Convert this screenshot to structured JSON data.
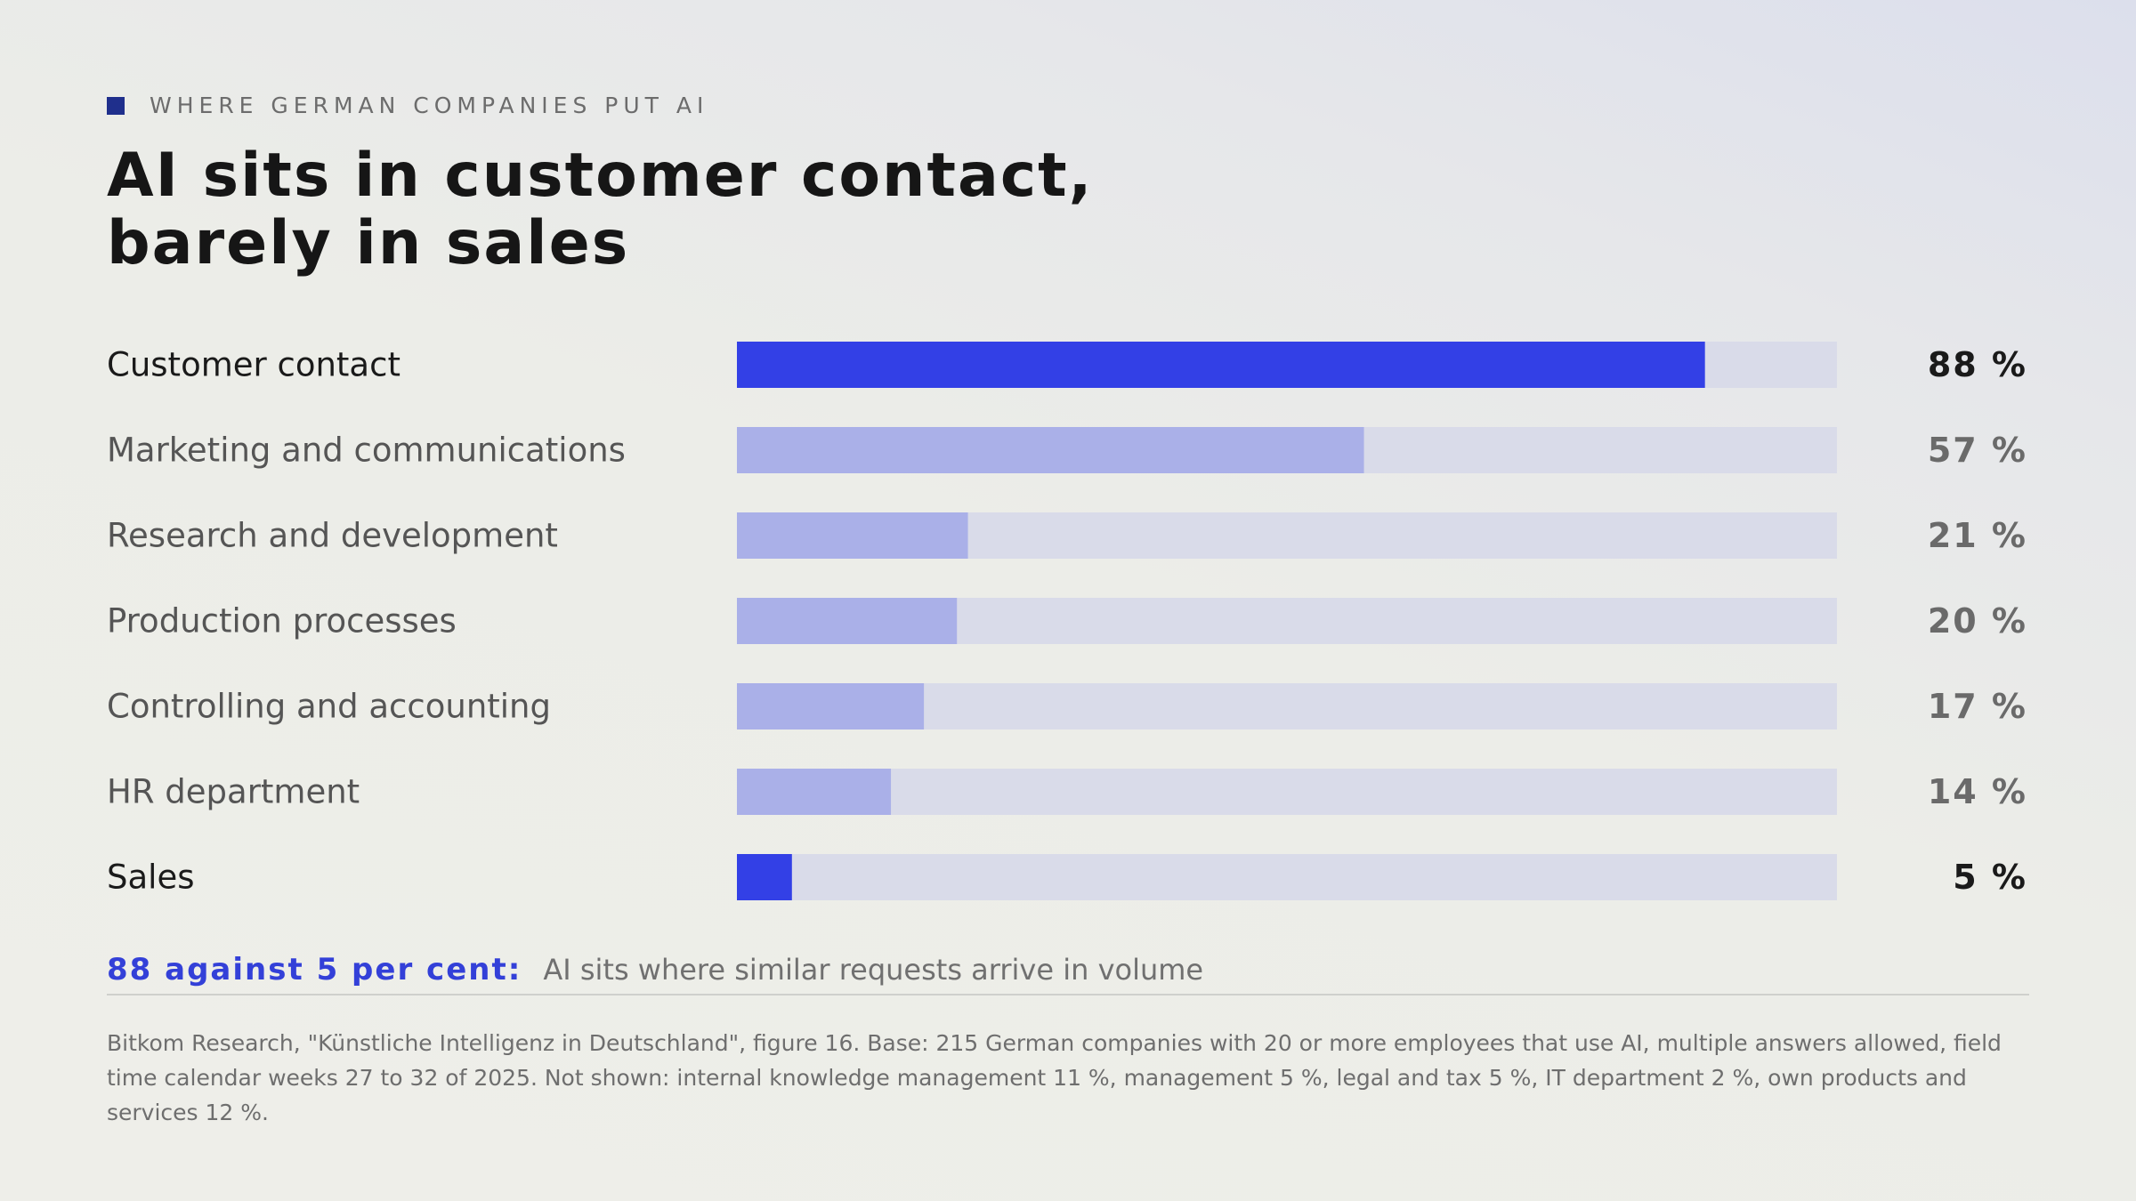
{
  "eyebrow": "WHERE GERMAN COMPANIES PUT AI",
  "title_line1": "AI sits in customer contact,",
  "title_line2": "barely in sales",
  "chart_data": {
    "type": "bar",
    "orientation": "horizontal",
    "categories": [
      "Customer contact",
      "Marketing and communications",
      "Research and development",
      "Production processes",
      "Controlling and accounting",
      "HR department",
      "Sales"
    ],
    "values": [
      88,
      57,
      21,
      20,
      17,
      14,
      5
    ],
    "value_labels": [
      "88 %",
      "57 %",
      "21 %",
      "20 %",
      "17 %",
      "14 %",
      "5 %"
    ],
    "highlighted": [
      "Customer contact",
      "Sales"
    ],
    "xlim": [
      0,
      100
    ],
    "unit": "%",
    "grid": false,
    "legend": "none"
  },
  "colors": {
    "highlight": "#3340e6",
    "bar": "#aab0e8",
    "track": "#d9dbe9",
    "label_strong": "#1a1a1a",
    "label_muted": "#555555",
    "value_strong": "#1a1a1a",
    "value_muted": "#6a6a6a"
  },
  "summary": {
    "lead": "88 against 5 per cent:",
    "text": "AI sits where similar requests arrive in volume"
  },
  "source": "Bitkom Research, \"Künstliche Intelligenz in Deutschland\", figure 16. Base: 215 German companies with 20 or more employees that use AI, multiple answers allowed, field time calendar weeks 27 to 32 of 2025. Not shown: internal knowledge management 11 %, management 5 %, legal and tax 5 %, IT department 2 %, own products and services 12 %."
}
